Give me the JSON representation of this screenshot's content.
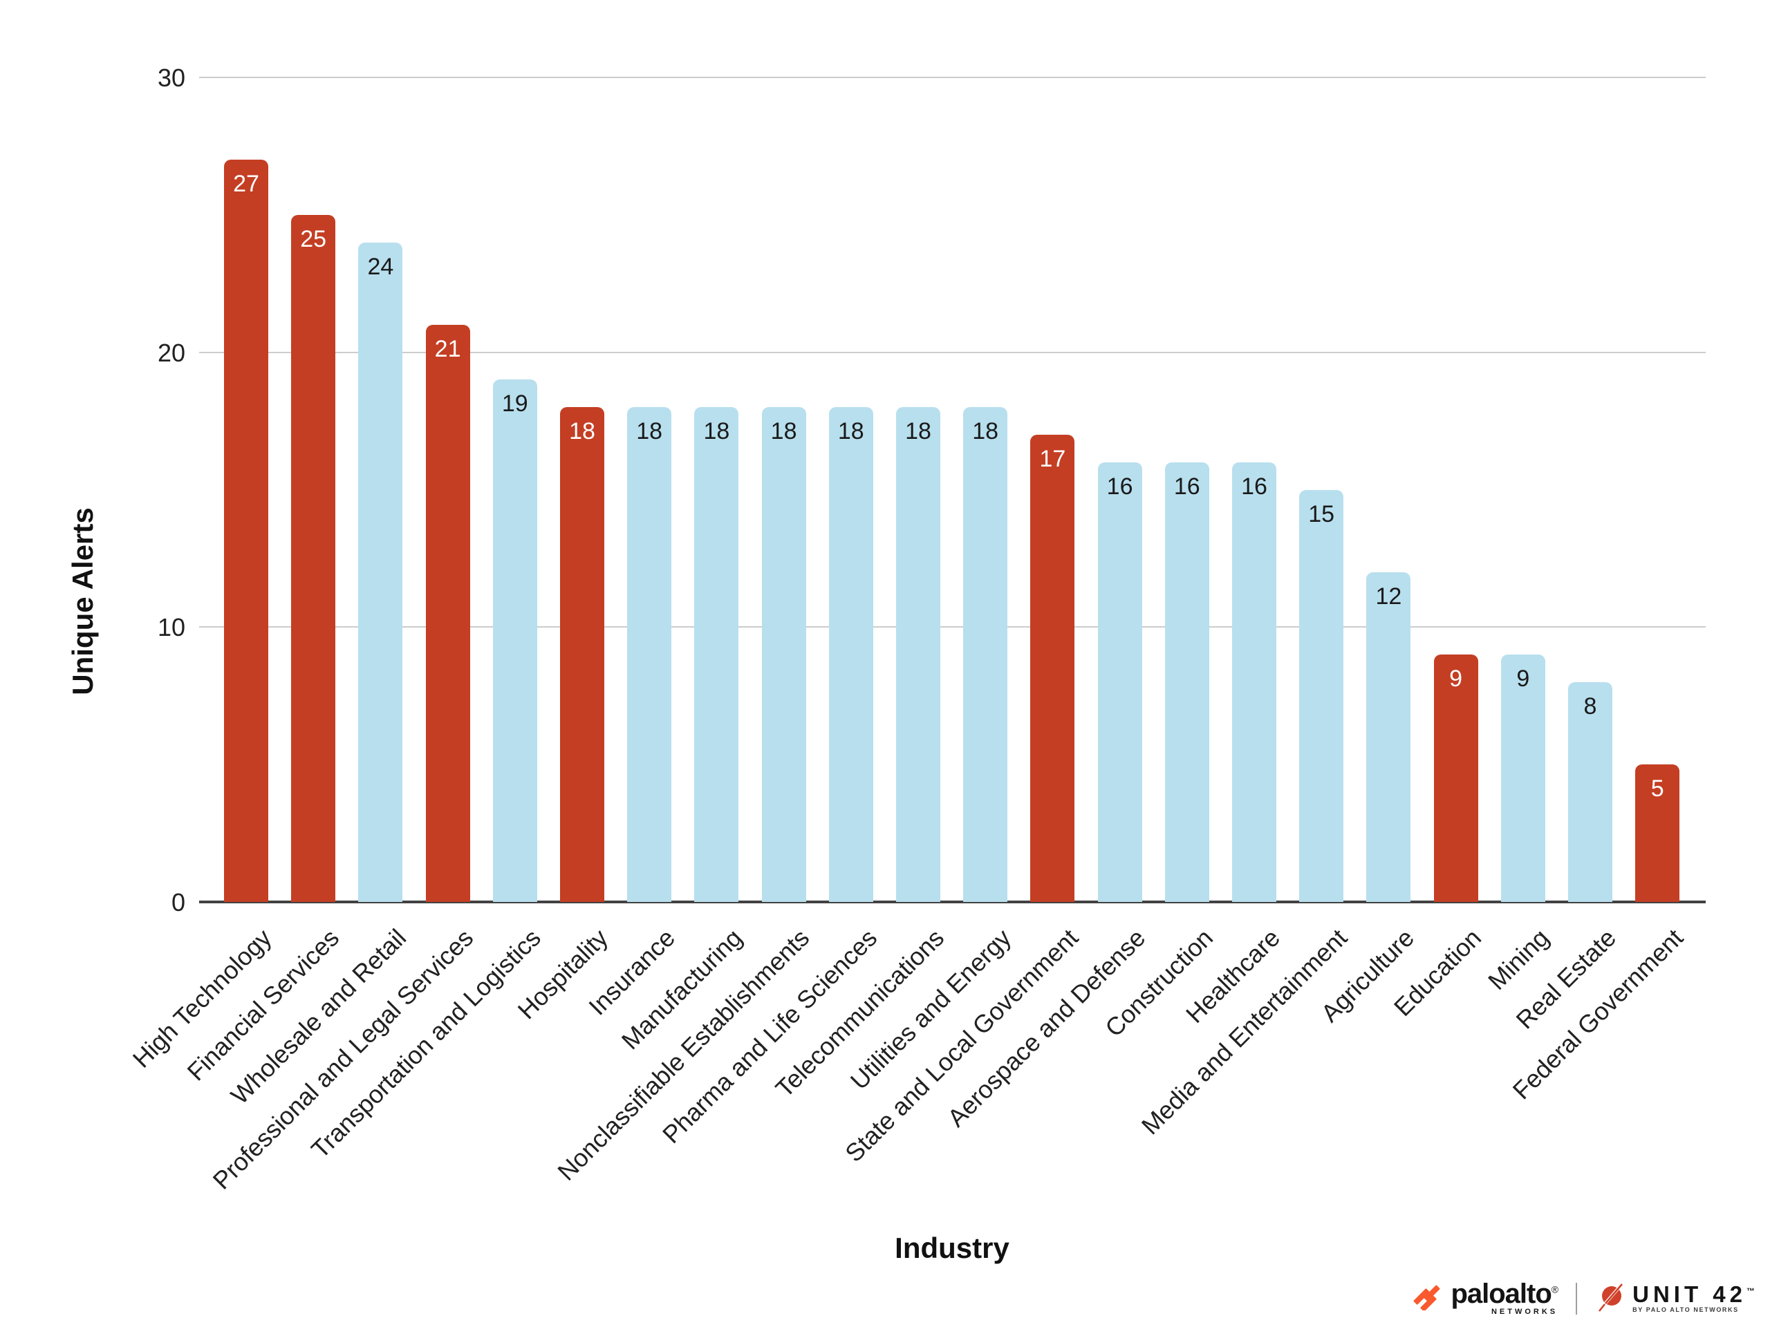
{
  "chart_data": {
    "type": "bar",
    "title": "",
    "xlabel": "Industry",
    "ylabel": "Unique Alerts",
    "ylim": [
      0,
      30
    ],
    "yticks": [
      0,
      10,
      20,
      30
    ],
    "grid": true,
    "legend": "none",
    "categories": [
      "High Technology",
      "Financial Services",
      "Wholesale and Retail",
      "Professional and Legal Services",
      "Transportation and Logistics",
      "Hospitality",
      "Insurance",
      "Manufacturing",
      "Nonclassifiable Establishments",
      "Pharma and Life Sciences",
      "Telecommunications",
      "Utilities and Energy",
      "State and Local Government",
      "Aerospace and Defense",
      "Construction",
      "Healthcare",
      "Media and Entertainment",
      "Agriculture",
      "Education",
      "Mining",
      "Real Estate",
      "Federal Government"
    ],
    "values": [
      27,
      25,
      24,
      21,
      19,
      18,
      18,
      18,
      18,
      18,
      18,
      18,
      17,
      16,
      16,
      16,
      15,
      12,
      9,
      9,
      8,
      5
    ],
    "highlighted": [
      true,
      true,
      false,
      true,
      false,
      true,
      false,
      false,
      false,
      false,
      false,
      false,
      true,
      false,
      false,
      false,
      false,
      false,
      true,
      false,
      false,
      true
    ],
    "colors": {
      "highlight_bar": "#C43E23",
      "normal_bar": "#B8DFEE",
      "label_on_highlight": "#FFFFFF",
      "label_on_normal": "#1A1A1A",
      "gridline": "#CCCCCC",
      "axis_line": "#424242"
    }
  },
  "footer": {
    "paloalto": {
      "brand": "paloalto",
      "registered": "®",
      "sub": "NETWORKS"
    },
    "unit42": {
      "brand": "UNIT 42",
      "trademark": "™",
      "sub": "BY PALO ALTO NETWORKS"
    },
    "icon_colors": {
      "paloalto_orange": "#FA582D",
      "unit42_red": "#D0412B"
    }
  }
}
